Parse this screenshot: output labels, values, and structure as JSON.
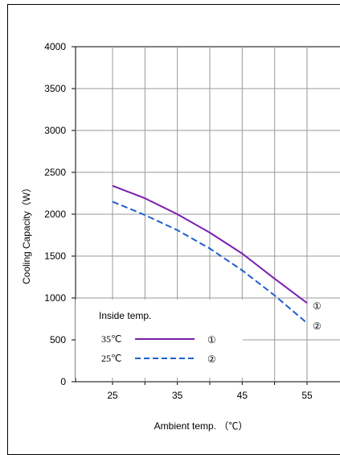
{
  "chart_data": {
    "type": "line",
    "xlabel": "Ambient temp. （℃）",
    "ylabel": "Cooling Capacity（W）",
    "xticks": [
      25,
      35,
      45,
      55
    ],
    "yticks": [
      0,
      500,
      1000,
      1500,
      2000,
      2500,
      3000,
      3500,
      4000
    ],
    "xlim": [
      20,
      60
    ],
    "ylim": [
      0,
      4000
    ],
    "grid": true,
    "legend": {
      "title": "Inside temp.",
      "placement": "bottom-left",
      "entries": [
        {
          "label": "35℃",
          "marker": "①"
        },
        {
          "label": "25℃",
          "marker": "②"
        }
      ]
    },
    "series": [
      {
        "marker": "①",
        "color": "#7a1fb0",
        "style": "solid",
        "x": [
          25,
          30,
          35,
          40,
          45,
          50,
          55
        ],
        "y": [
          2340,
          2190,
          2000,
          1780,
          1530,
          1230,
          940
        ]
      },
      {
        "marker": "②",
        "color": "#1f5fcf",
        "style": "dashed",
        "x": [
          25,
          30,
          35,
          40,
          45,
          50,
          55
        ],
        "y": [
          2150,
          1990,
          1810,
          1590,
          1330,
          1030,
          700
        ]
      }
    ]
  }
}
